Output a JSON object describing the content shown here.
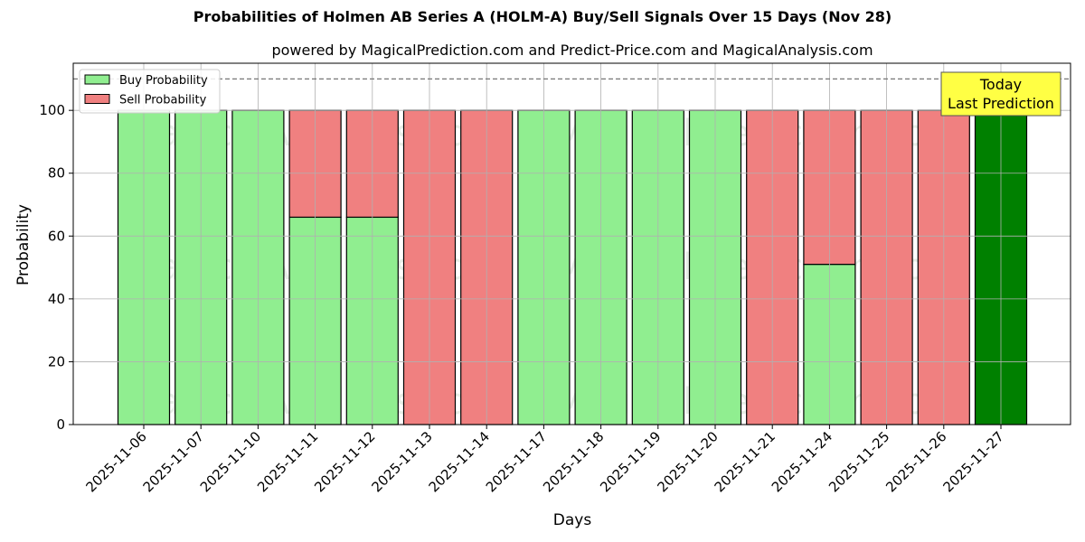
{
  "chart_data": {
    "type": "bar",
    "stacked": true,
    "title": "Probabilities of Holmen AB Series A (HOLM-A) Buy/Sell Signals Over 15 Days (Nov 28)",
    "subtitle": "powered by MagicalPrediction.com and Predict-Price.com and MagicalAnalysis.com",
    "xlabel": "Days",
    "ylabel": "Probability",
    "ylim": [
      0,
      115
    ],
    "yticks": [
      0,
      20,
      40,
      60,
      80,
      100
    ],
    "grid": true,
    "legend_position": "upper left",
    "categories": [
      "2025-11-06",
      "2025-11-07",
      "2025-11-10",
      "2025-11-11",
      "2025-11-12",
      "2025-11-13",
      "2025-11-14",
      "2025-11-17",
      "2025-11-18",
      "2025-11-19",
      "2025-11-20",
      "2025-11-21",
      "2025-11-24",
      "2025-11-25",
      "2025-11-26",
      "2025-11-27"
    ],
    "series": [
      {
        "name": "Buy Probability",
        "color": "#90ee90",
        "values": [
          100,
          100,
          100,
          66,
          66,
          0,
          0,
          100,
          100,
          100,
          100,
          0,
          51,
          0,
          0,
          100
        ]
      },
      {
        "name": "Sell Probability",
        "color": "#f08080",
        "values": [
          0,
          0,
          0,
          34,
          34,
          100,
          100,
          0,
          0,
          0,
          0,
          100,
          49,
          100,
          100,
          0
        ]
      }
    ],
    "highlight": {
      "index": 15,
      "color": "#008000"
    },
    "reference_line": {
      "y": 110,
      "style": "dashed"
    },
    "annotation": {
      "text_line1": "Today",
      "text_line2": "Last Prediction",
      "background": "#ffff44"
    },
    "watermarks": [
      "MagicalAnalysis.com",
      "MagicalPrediction.com"
    ]
  }
}
